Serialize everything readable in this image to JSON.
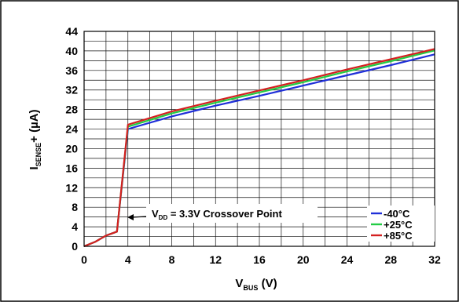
{
  "chart_data": {
    "type": "line",
    "xlabel_main": "V",
    "xlabel_sub": "BUS",
    "xlabel_unit": " (V)",
    "ylabel_main": "I",
    "ylabel_sub": "SENSE",
    "ylabel_suffix": "+ (µA)",
    "xlim": [
      0,
      32
    ],
    "ylim": [
      0,
      44
    ],
    "x_ticks": [
      0,
      4,
      8,
      12,
      16,
      20,
      24,
      28,
      32
    ],
    "y_ticks": [
      0,
      4,
      8,
      12,
      16,
      20,
      24,
      28,
      32,
      36,
      40,
      44
    ],
    "grid": true,
    "legend_position": "bottom-right",
    "series": [
      {
        "name": "-40°C",
        "color": "#1f2fd8",
        "points": [
          [
            0,
            0
          ],
          [
            1,
            0.9
          ],
          [
            2,
            2.2
          ],
          [
            3,
            3.0
          ],
          [
            4,
            24.0
          ],
          [
            8,
            26.6
          ],
          [
            12,
            28.8
          ],
          [
            16,
            30.8
          ],
          [
            20,
            32.9
          ],
          [
            24,
            35.0
          ],
          [
            28,
            37.1
          ],
          [
            32,
            39.3
          ]
        ]
      },
      {
        "name": "+25°C",
        "color": "#22cc44",
        "points": [
          [
            0,
            0
          ],
          [
            1,
            0.9
          ],
          [
            2,
            2.2
          ],
          [
            3,
            3.0
          ],
          [
            4,
            24.5
          ],
          [
            8,
            27.2
          ],
          [
            12,
            29.4
          ],
          [
            16,
            31.5
          ],
          [
            20,
            33.6
          ],
          [
            24,
            35.8
          ],
          [
            28,
            37.9
          ],
          [
            32,
            40.1
          ]
        ]
      },
      {
        "name": "+85°C",
        "color": "#d42020",
        "points": [
          [
            0,
            0
          ],
          [
            1,
            0.9
          ],
          [
            2,
            2.2
          ],
          [
            3,
            3.0
          ],
          [
            4,
            24.9
          ],
          [
            8,
            27.6
          ],
          [
            12,
            29.8
          ],
          [
            16,
            31.9
          ],
          [
            20,
            34.0
          ],
          [
            24,
            36.2
          ],
          [
            28,
            38.3
          ],
          [
            32,
            40.4
          ]
        ]
      }
    ],
    "annotation": {
      "main": "V",
      "sub": "DD",
      "rest": " = 3.3V Crossover Point",
      "x": 4,
      "y": 3.2
    }
  }
}
